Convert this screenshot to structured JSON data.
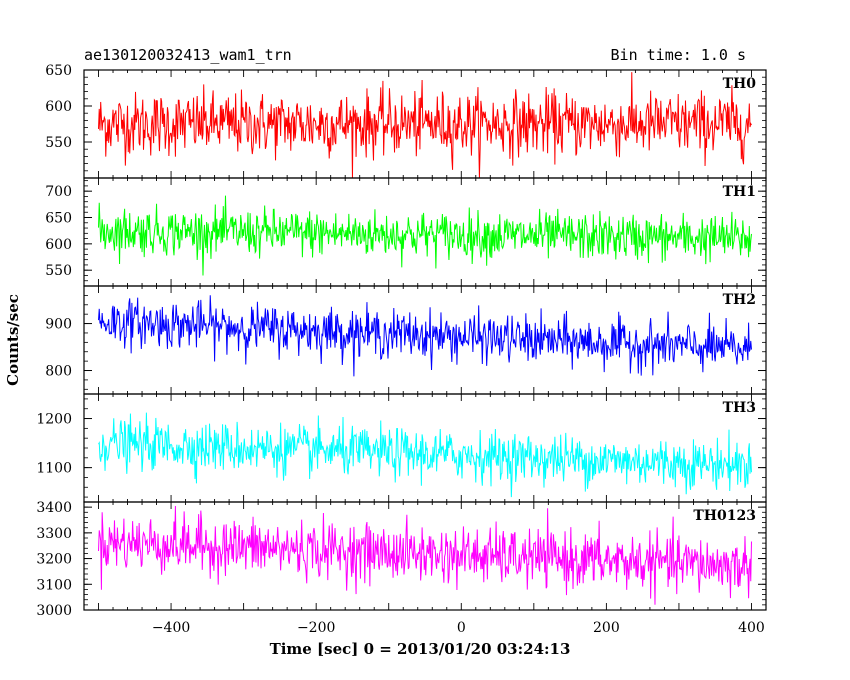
{
  "header": {
    "left_title": "ae130120032413_wam1_trn",
    "right_title": "Bin time: 1.0 s"
  },
  "chart_data": {
    "type": "line",
    "title": "ae130120032413_wam1_trn",
    "subtitle": "Bin time: 1.0 s",
    "xlabel": "Time [sec] 0 = 2013/01/20 03:24:13",
    "ylabel": "Counts/sec",
    "xlim": [
      -520,
      420
    ],
    "x_range_data": [
      -500,
      400
    ],
    "x_ticks": [
      -400,
      -200,
      0,
      200,
      400
    ],
    "x_tick_labels": [
      "−400",
      "−200",
      "0",
      "200",
      "400"
    ],
    "grid": false,
    "legend": "none",
    "series": [
      {
        "name": "TH0",
        "color": "#ff0000",
        "ylim": [
          500,
          650
        ],
        "y_ticks": [
          550,
          600,
          650
        ],
        "y_tick_labels": [
          "550",
          "600",
          "650"
        ],
        "mean_start": 575,
        "mean_end": 575,
        "noise": 22,
        "min": 500,
        "max": 650
      },
      {
        "name": "TH1",
        "color": "#00ff00",
        "ylim": [
          520,
          725
        ],
        "y_ticks": [
          550,
          600,
          650,
          700
        ],
        "y_tick_labels": [
          "550",
          "600",
          "650",
          "700"
        ],
        "mean_start": 625,
        "mean_end": 610,
        "noise": 22,
        "min": 540,
        "max": 720
      },
      {
        "name": "TH2",
        "color": "#0000ff",
        "ylim": [
          750,
          980
        ],
        "y_ticks": [
          800,
          900
        ],
        "y_tick_labels": [
          "800",
          "900"
        ],
        "mean_start": 905,
        "mean_end": 845,
        "noise": 25,
        "min": 770,
        "max": 980
      },
      {
        "name": "TH3",
        "color": "#00ffff",
        "ylim": [
          1030,
          1250
        ],
        "y_ticks": [
          1100,
          1200
        ],
        "y_tick_labels": [
          "1100",
          "1200"
        ],
        "mean_start": 1150,
        "mean_end": 1105,
        "noise": 25,
        "min": 1040,
        "max": 1250
      },
      {
        "name": "TH0123",
        "color": "#ff00ff",
        "ylim": [
          3000,
          3420
        ],
        "y_ticks": [
          3000,
          3100,
          3200,
          3300,
          3400
        ],
        "y_tick_labels": [
          "3000",
          "3100",
          "3200",
          "3300",
          "3400"
        ],
        "mean_start": 3265,
        "mean_end": 3170,
        "noise": 55,
        "min": 3000,
        "max": 3420
      }
    ]
  }
}
